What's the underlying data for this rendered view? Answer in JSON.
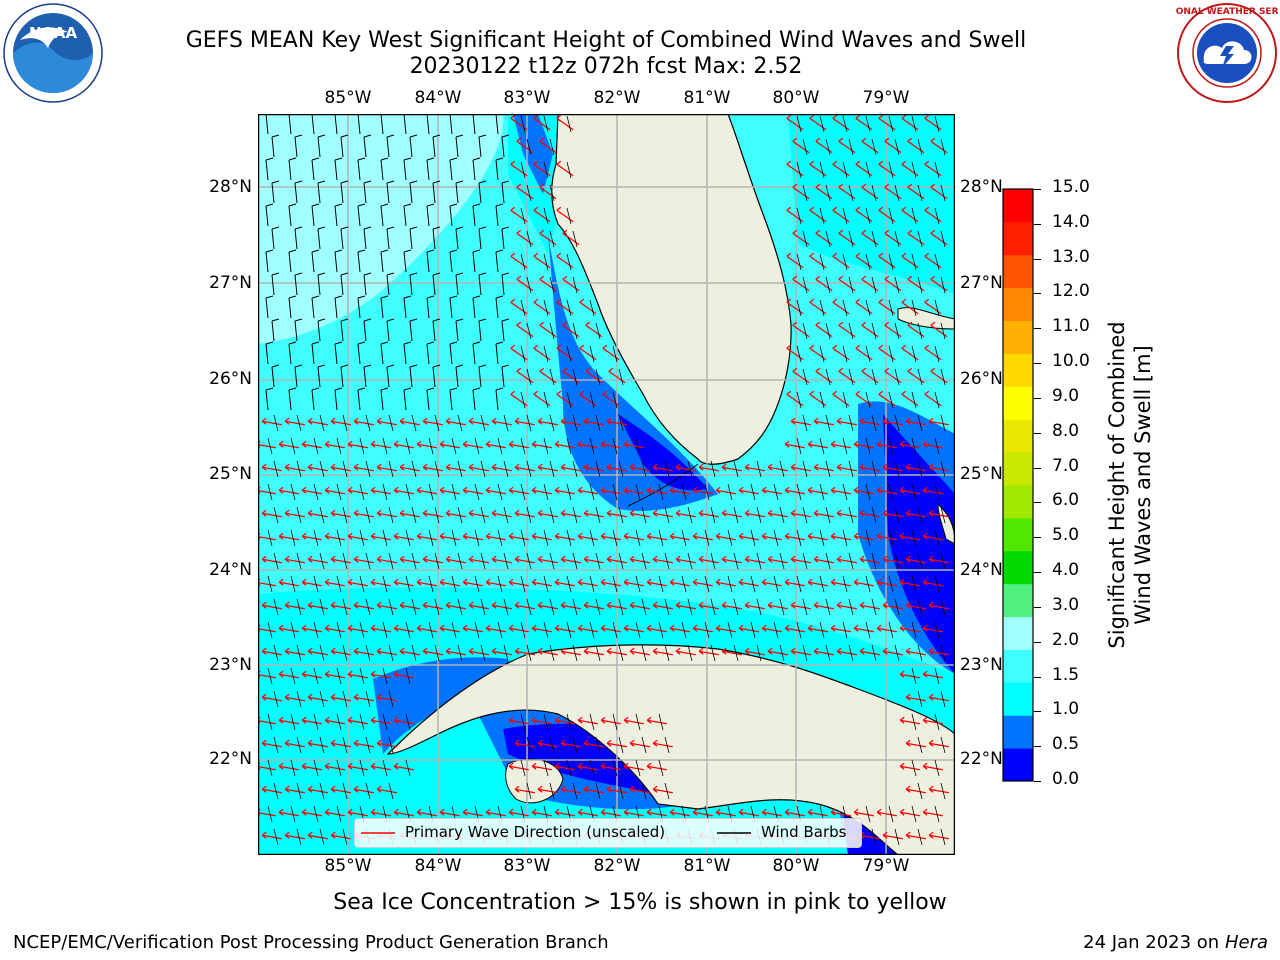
{
  "title": {
    "line1": "GEFS MEAN Key West Significant Height of Combined Wind Waves and Swell",
    "line2": "20230122 t12z 072h fcst   Max: 2.52"
  },
  "logos": {
    "left": {
      "name": "noaa-logo",
      "text": "NOAA"
    },
    "right": {
      "name": "national-weather-service-logo",
      "text": "NATIONAL WEATHER SERVICE"
    }
  },
  "map": {
    "lon_labels": [
      "85°W",
      "84°W",
      "83°W",
      "82°W",
      "81°W",
      "80°W",
      "79°W"
    ],
    "lat_labels": [
      "28°N",
      "27°N",
      "26°N",
      "25°N",
      "24°N",
      "23°N",
      "22°N"
    ],
    "extent": {
      "lon": [
        -86.0,
        -78.3
      ],
      "lat": [
        21.0,
        28.75
      ]
    },
    "land_color": "#efefe0",
    "gridline_color": "#b4b4b4"
  },
  "legend": {
    "items": [
      {
        "label": "Primary Wave Direction (unscaled)",
        "color": "#ff0000"
      },
      {
        "label": "Wind Barbs",
        "color": "#000000"
      }
    ]
  },
  "colorbar": {
    "ticks": [
      "0.0",
      "0.5",
      "1.0",
      "1.5",
      "2.0",
      "3.0",
      "4.0",
      "5.0",
      "6.0",
      "7.0",
      "8.0",
      "9.0",
      "10.0",
      "11.0",
      "12.0",
      "13.0",
      "14.0",
      "15.0"
    ],
    "colors": [
      "#0000ff",
      "#0073ff",
      "#00ffff",
      "#40ffff",
      "#a0ffff",
      "#50f080",
      "#00d800",
      "#50e800",
      "#a0e800",
      "#c8e800",
      "#e8e800",
      "#ffff00",
      "#ffd800",
      "#ffb000",
      "#ff8800",
      "#ff5500",
      "#ff2000",
      "#ff0000"
    ],
    "label_line1": "Significant Height of Combined",
    "label_line2": "Wind Waves and Swell [m]"
  },
  "note": "Sea Ice Concentration > 15% is shown in pink to yellow",
  "footer": {
    "left": "NCEP/EMC/Verification Post Processing Product Generation Branch",
    "right_prefix": "24 Jan 2023 on ",
    "right_machine": "Hera"
  }
}
